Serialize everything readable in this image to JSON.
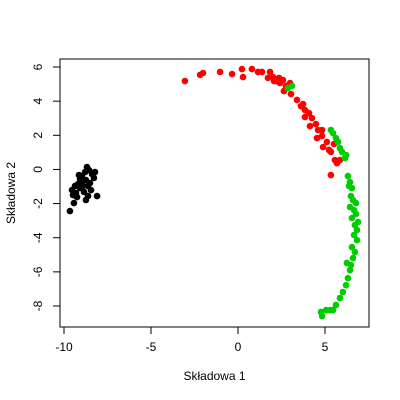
{
  "chart_data": {
    "type": "scatter",
    "x_label": "Składowa 1",
    "y_label": "Składowa 2",
    "xlim": [
      -10.23,
      7.53
    ],
    "ylim": [
      -9.23,
      6.47
    ],
    "xticks": [
      -10,
      -5,
      0,
      5
    ],
    "yticks": [
      -8,
      -6,
      -4,
      -2,
      0,
      2,
      4,
      6
    ],
    "series": [
      {
        "color": "#000000",
        "x": [
          -8.68,
          -8.56,
          -8.79,
          -8.39,
          -8.97,
          -9.08,
          -8.74,
          -9.2,
          -9.37,
          -9.08,
          -9.54,
          -8.91,
          -8.62,
          -8.28,
          -8.1,
          -8.74,
          -9.25,
          -9.43,
          -9.66,
          -9.31,
          -9.02,
          -8.51,
          -8.85,
          -9.14,
          -9.48,
          -8.62,
          -8.45,
          -8.22
        ],
        "y": [
          0.14,
          -0.04,
          -0.15,
          -0.27,
          -0.39,
          -0.56,
          -0.62,
          -0.86,
          -0.97,
          -1.09,
          -1.21,
          -0.97,
          -0.97,
          -0.5,
          -1.56,
          -1.79,
          -1.62,
          -1.97,
          -2.44,
          -1.38,
          -0.74,
          -0.8,
          -1.32,
          -0.33,
          -1.5,
          -1.56,
          -1.21,
          -0.15
        ]
      },
      {
        "color": "#ff0000",
        "x": [
          -3.05,
          -2.18,
          -2.01,
          -1.03,
          -0.34,
          0.23,
          0.29,
          0.8,
          1.15,
          1.38,
          1.72,
          2.01,
          2.18,
          2.41,
          2.59,
          2.76,
          2.99,
          2.64,
          3.05,
          3.39,
          3.62,
          3.85,
          4.08,
          3.85,
          4.25,
          4.48,
          4.14,
          4.6,
          4.83,
          4.54,
          5.11,
          4.89,
          5.23,
          5.34,
          5.52,
          5.57,
          5.69,
          5.86,
          5.34,
          4.83,
          3.74,
          2.36,
          1.84,
          2.07
        ],
        "y": [
          5.18,
          5.54,
          5.65,
          5.71,
          5.59,
          5.88,
          5.41,
          5.88,
          5.71,
          5.71,
          5.36,
          5.41,
          5.18,
          5.06,
          5.24,
          4.89,
          5.06,
          4.59,
          4.42,
          4.07,
          3.71,
          3.48,
          3.3,
          3.07,
          3.01,
          2.66,
          2.54,
          2.31,
          1.96,
          1.84,
          1.61,
          1.31,
          1.14,
          1.03,
          1.49,
          0.55,
          0.37,
          0.55,
          -0.33,
          2.31,
          3.83,
          5.36,
          5.71,
          5.18
        ]
      },
      {
        "color": "#00cd00",
        "x": [
          2.87,
          3.1,
          5.34,
          5.46,
          5.63,
          5.75,
          5.86,
          5.98,
          6.15,
          6.21,
          6.32,
          6.44,
          6.55,
          6.49,
          6.61,
          6.44,
          6.67,
          6.78,
          6.55,
          6.72,
          6.84,
          6.67,
          6.84,
          6.55,
          6.72,
          6.61,
          6.49,
          6.44,
          6.32,
          6.21,
          6.03,
          5.86,
          5.63,
          5.46,
          5.06,
          5.29,
          4.77,
          4.83,
          6.38,
          6.78,
          6.9,
          6.26
        ],
        "y": [
          4.77,
          4.89,
          2.31,
          2.13,
          1.84,
          1.61,
          1.25,
          1.03,
          0.67,
          0.84,
          -0.39,
          -0.74,
          -1.09,
          -1.56,
          -1.79,
          -2.2,
          -2.38,
          -2.61,
          -2.85,
          -3.26,
          -3.55,
          -3.84,
          -4.14,
          -4.55,
          -4.84,
          -5.19,
          -5.6,
          -5.9,
          -6.37,
          -6.78,
          -7.18,
          -7.53,
          -7.94,
          -8.24,
          -8.24,
          -8.24,
          -8.35,
          -8.59,
          -0.97,
          -1.97,
          -3.08,
          -5.48
        ]
      }
    ]
  }
}
